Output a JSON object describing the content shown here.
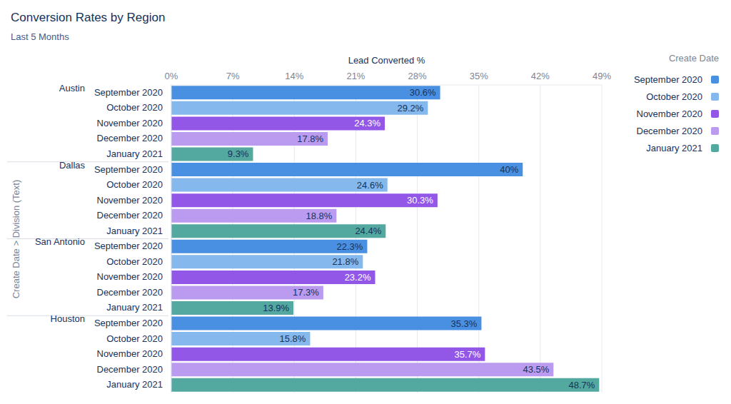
{
  "chart_data": {
    "type": "bar",
    "orientation": "horizontal",
    "title": "Conversion Rates by Region",
    "subtitle": "Last 5 Months",
    "x_label": "Lead Converted %",
    "y_label": "Create Date > Division (Text)",
    "legend_title": "Create Date",
    "legend": "right",
    "grid": true,
    "data_labels": true,
    "categories": [
      "Austin",
      "Dallas",
      "San Antonio",
      "Houston"
    ],
    "series": [
      {
        "name": "September 2020",
        "color": "#4a90e2",
        "values": [
          30.6,
          40,
          22.3,
          35.3
        ],
        "value_labels": [
          "30.6%",
          "40%",
          "22.3%",
          "35.3%"
        ]
      },
      {
        "name": "October 2020",
        "color": "#85b8ec",
        "values": [
          29.2,
          24.6,
          21.8,
          15.8
        ],
        "value_labels": [
          "29.2%",
          "24.6%",
          "21.8%",
          "15.8%"
        ]
      },
      {
        "name": "November 2020",
        "color": "#9357e8",
        "values": [
          24.3,
          30.3,
          23.2,
          35.7
        ],
        "value_labels": [
          "24.3%",
          "30.3%",
          "23.2%",
          "35.7%"
        ]
      },
      {
        "name": "December 2020",
        "color": "#bb9bef",
        "values": [
          17.8,
          18.8,
          17.3,
          43.5
        ],
        "value_labels": [
          "17.8%",
          "18.8%",
          "17.3%",
          "43.5%"
        ]
      },
      {
        "name": "January 2021",
        "color": "#53a8a0",
        "values": [
          9.3,
          24.4,
          13.9,
          48.7
        ],
        "value_labels": [
          "9.3%",
          "24.4%",
          "13.9%",
          "48.7%"
        ]
      }
    ],
    "xlim": [
      0,
      49
    ],
    "xticks": [
      {
        "value": 0,
        "label": "0%"
      },
      {
        "value": 7,
        "label": "7%"
      },
      {
        "value": 14,
        "label": "14%"
      },
      {
        "value": 21,
        "label": "21%"
      },
      {
        "value": 28,
        "label": "28%"
      },
      {
        "value": 35,
        "label": "35%"
      },
      {
        "value": 42,
        "label": "42%"
      },
      {
        "value": 49,
        "label": "49%"
      }
    ]
  }
}
